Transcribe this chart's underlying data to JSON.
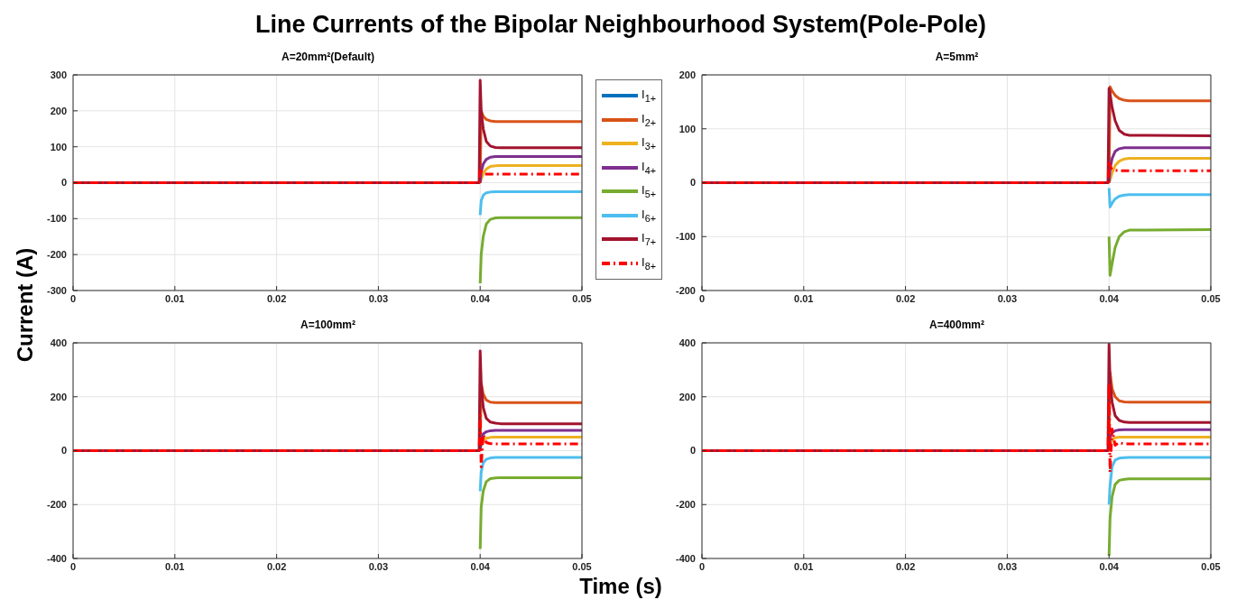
{
  "chart_data": [
    {
      "type": "line",
      "title": "Line Currents of the Bipolar Neighbourhood System(Pole-Pole)",
      "subtitle": "A=20mm²(Default)",
      "xlabel": "Time (s)",
      "ylabel": "Current (A)",
      "legend": "right",
      "grid": true,
      "xlim": [
        0,
        0.05
      ],
      "xticks": [
        0,
        0.01,
        0.02,
        0.03,
        0.04,
        0.05
      ],
      "ylim": [
        -300,
        300
      ],
      "yticks": [
        -300,
        -200,
        -100,
        0,
        100,
        200,
        300
      ],
      "x": [
        0,
        0.0399,
        0.04,
        0.0401,
        0.0403,
        0.0406,
        0.041,
        0.0415,
        0.042,
        0.05
      ],
      "series": [
        {
          "name": "I$_{1+}$",
          "color": "#0072bd",
          "values": [
            null,
            null,
            null,
            null,
            null,
            null,
            null,
            null,
            null,
            null
          ]
        },
        {
          "name": "I$_{2+}$",
          "color": "#d95319",
          "values": [
            null,
            null,
            0,
            200,
            185,
            176,
            172,
            170,
            170,
            170
          ]
        },
        {
          "name": "I$_{3+}$",
          "color": "#edb120",
          "values": [
            null,
            null,
            0,
            10,
            25,
            38,
            45,
            47,
            48,
            48
          ]
        },
        {
          "name": "I$_{4+}$",
          "color": "#7e2f8e",
          "values": [
            null,
            null,
            0,
            30,
            52,
            65,
            71,
            73,
            73,
            73
          ]
        },
        {
          "name": "I$_{5+}$",
          "color": "#77ac30",
          "values": [
            null,
            null,
            -280,
            -200,
            -150,
            -115,
            -102,
            -98,
            -97,
            -97
          ]
        },
        {
          "name": "I$_{6+}$",
          "color": "#4dbeee",
          "values": [
            null,
            null,
            -90,
            -50,
            -35,
            -28,
            -26,
            -25,
            -25,
            -25
          ]
        },
        {
          "name": "I$_{7+}$",
          "color": "#a2142f",
          "values": [
            0,
            0,
            285,
            200,
            150,
            115,
            102,
            98,
            97,
            97
          ]
        },
        {
          "name": "I$_{8+}$",
          "color": "#ff0000",
          "line_style": "dashed",
          "values": [
            0,
            0,
            40,
            32,
            26,
            24,
            24,
            24,
            24,
            24
          ]
        }
      ]
    },
    {
      "type": "line",
      "title": "A=5mm²",
      "grid": true,
      "xlim": [
        0,
        0.05
      ],
      "xticks": [
        0,
        0.01,
        0.02,
        0.03,
        0.04,
        0.05
      ],
      "ylim": [
        -200,
        200
      ],
      "yticks": [
        -200,
        -100,
        0,
        100,
        200
      ],
      "x": [
        0,
        0.0399,
        0.04,
        0.0401,
        0.0403,
        0.0406,
        0.041,
        0.0415,
        0.042,
        0.05
      ],
      "series": [
        {
          "color": "#0072bd",
          "values": [
            null,
            null,
            null,
            null,
            null,
            null,
            null,
            null,
            null,
            null
          ]
        },
        {
          "color": "#d95319",
          "values": [
            null,
            null,
            0,
            178,
            170,
            162,
            156,
            153,
            152,
            152
          ]
        },
        {
          "color": "#edb120",
          "values": [
            null,
            null,
            0,
            5,
            18,
            32,
            40,
            44,
            45,
            45
          ]
        },
        {
          "color": "#7e2f8e",
          "values": [
            null,
            null,
            0,
            25,
            45,
            58,
            63,
            65,
            65,
            65
          ]
        },
        {
          "color": "#77ac30",
          "values": [
            null,
            null,
            -100,
            -172,
            -150,
            -120,
            -100,
            -91,
            -88,
            -87
          ]
        },
        {
          "color": "#4dbeee",
          "values": [
            null,
            null,
            -10,
            -45,
            -38,
            -30,
            -25,
            -23,
            -22,
            -22
          ]
        },
        {
          "color": "#a2142f",
          "values": [
            0,
            0,
            175,
            165,
            140,
            115,
            97,
            90,
            88,
            87
          ]
        },
        {
          "color": "#ff0000",
          "line_style": "dashed",
          "values": [
            0,
            0,
            40,
            30,
            25,
            23,
            22,
            22,
            22,
            22
          ]
        }
      ]
    },
    {
      "type": "line",
      "title": "A=100mm²",
      "grid": true,
      "xlim": [
        0,
        0.05
      ],
      "xticks": [
        0,
        0.01,
        0.02,
        0.03,
        0.04,
        0.05
      ],
      "ylim": [
        -400,
        400
      ],
      "yticks": [
        -400,
        -200,
        0,
        200,
        400
      ],
      "x": [
        0,
        0.0399,
        0.04,
        0.0401,
        0.0403,
        0.0406,
        0.041,
        0.0415,
        0.042,
        0.05
      ],
      "series": [
        {
          "color": "#0072bd",
          "values": [
            null,
            null,
            null,
            null,
            null,
            null,
            null,
            null,
            null,
            null
          ]
        },
        {
          "color": "#d95319",
          "values": [
            null,
            null,
            0,
            250,
            210,
            188,
            180,
            178,
            178,
            178
          ]
        },
        {
          "color": "#edb120",
          "values": [
            null,
            null,
            0,
            20,
            38,
            46,
            49,
            50,
            50,
            50
          ]
        },
        {
          "color": "#7e2f8e",
          "values": [
            null,
            null,
            0,
            45,
            62,
            70,
            74,
            75,
            75,
            75
          ]
        },
        {
          "color": "#77ac30",
          "values": [
            null,
            null,
            -365,
            -210,
            -150,
            -115,
            -104,
            -101,
            -100,
            -100
          ]
        },
        {
          "color": "#4dbeee",
          "values": [
            null,
            null,
            -150,
            -80,
            -45,
            -32,
            -27,
            -25,
            -25,
            -25
          ]
        },
        {
          "color": "#a2142f",
          "values": [
            0,
            0,
            370,
            250,
            160,
            120,
            106,
            102,
            100,
            100
          ]
        },
        {
          "color": "#ff0000",
          "line_style": "dashed",
          "values": [
            0,
            0,
            130,
            -60,
            60,
            30,
            26,
            25,
            25,
            25
          ]
        }
      ]
    },
    {
      "type": "line",
      "title": "A=400mm²",
      "grid": true,
      "xlim": [
        0,
        0.05
      ],
      "xticks": [
        0,
        0.01,
        0.02,
        0.03,
        0.04,
        0.05
      ],
      "ylim": [
        -400,
        400
      ],
      "yticks": [
        -400,
        -200,
        0,
        200,
        400
      ],
      "x": [
        0,
        0.0399,
        0.04,
        0.0401,
        0.0403,
        0.0406,
        0.041,
        0.0415,
        0.042,
        0.05
      ],
      "series": [
        {
          "color": "#0072bd",
          "values": [
            null,
            null,
            null,
            null,
            null,
            null,
            null,
            null,
            null,
            null
          ]
        },
        {
          "color": "#d95319",
          "values": [
            null,
            null,
            0,
            290,
            230,
            200,
            185,
            181,
            180,
            180
          ]
        },
        {
          "color": "#edb120",
          "values": [
            null,
            null,
            0,
            20,
            40,
            48,
            50,
            50,
            50,
            50
          ]
        },
        {
          "color": "#7e2f8e",
          "values": [
            null,
            null,
            0,
            50,
            66,
            74,
            77,
            78,
            78,
            78
          ]
        },
        {
          "color": "#77ac30",
          "values": [
            null,
            null,
            -390,
            -250,
            -170,
            -125,
            -110,
            -106,
            -105,
            -105
          ]
        },
        {
          "color": "#4dbeee",
          "values": [
            null,
            null,
            -200,
            -130,
            -60,
            -35,
            -28,
            -26,
            -25,
            -25
          ]
        },
        {
          "color": "#a2142f",
          "values": [
            0,
            0,
            395,
            260,
            180,
            130,
            112,
            106,
            105,
            105
          ]
        },
        {
          "color": "#ff0000",
          "line_style": "dashed",
          "values": [
            0,
            0,
            250,
            -80,
            80,
            20,
            30,
            25,
            25,
            25
          ]
        }
      ]
    }
  ]
}
